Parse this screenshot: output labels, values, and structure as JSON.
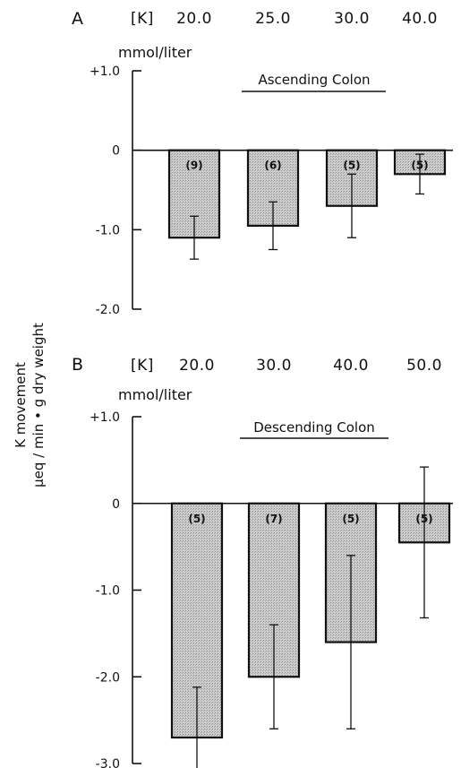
{
  "ylabel_line1": "K movement",
  "ylabel_line2": "μeq / min • g dry weight",
  "colors": {
    "bar_fill": "#c4c4c4",
    "ink": "#111111"
  },
  "chart_data": [
    {
      "type": "bar",
      "panel": "A",
      "title": "Ascending Colon",
      "concentration_prefix": "[K]",
      "unit": "mmol/liter",
      "categories": [
        "20.0",
        "25.0",
        "30.0",
        "40.0"
      ],
      "values": [
        -1.1,
        -0.95,
        -0.7,
        -0.3
      ],
      "error": [
        0.27,
        0.3,
        0.4,
        0.25
      ],
      "n_labels": [
        "(9)",
        "(6)",
        "(5)",
        "(5)"
      ],
      "ylim": [
        -2.0,
        1.0
      ],
      "yticks": [
        1.0,
        0,
        -1.0,
        -2.0
      ],
      "ytick_labels": [
        "+1.0",
        "0",
        "-1.0",
        "-2.0"
      ],
      "grid": false
    },
    {
      "type": "bar",
      "panel": "B",
      "title": "Descending Colon",
      "concentration_prefix": "[K]",
      "unit": "mmol/liter",
      "categories": [
        "20.0",
        "30.0",
        "40.0",
        "50.0"
      ],
      "values": [
        -2.7,
        -2.0,
        -1.6,
        -0.45
      ],
      "error": [
        0.58,
        0.6,
        1.0,
        0.87
      ],
      "n_labels": [
        "(5)",
        "(7)",
        "(5)",
        "(5)"
      ],
      "ylim": [
        -3.0,
        1.0
      ],
      "yticks": [
        1.0,
        0,
        -1.0,
        -2.0,
        -3.0
      ],
      "ytick_labels": [
        "+1.0",
        "0",
        "-1.0",
        "-2.0",
        "-3.0"
      ],
      "grid": false
    }
  ]
}
